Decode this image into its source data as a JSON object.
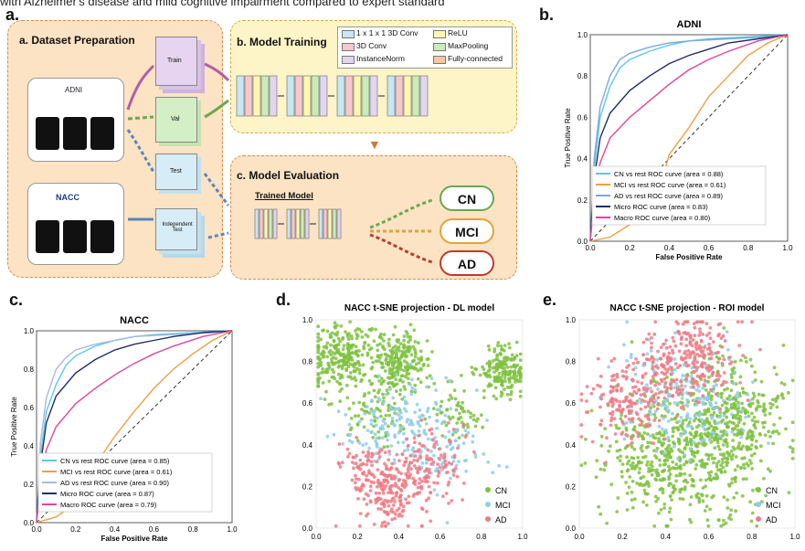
{
  "caption": "with Alzheimer's disease and mild cognitive impairment compared to expert standard",
  "panel_a": {
    "letter": "a.",
    "title": "a. Dataset Preparation",
    "adni_label": "ADNI",
    "nacc_label": "NACC",
    "train": "Train",
    "val": "Val",
    "test": "Test",
    "independent_test": "Independent Test"
  },
  "panel_b_box": {
    "title": "b. Model Training",
    "legend": [
      "1 x 1 x 1 3D Conv",
      "ReLU",
      "3D Conv",
      "MaxPooling",
      "InstanceNorm",
      "Fully-connected"
    ],
    "colors": [
      "#c6e7f3",
      "#fff7b0",
      "#f7c7cf",
      "#c9ecb8",
      "#e3d5f0",
      "#f8c9a0"
    ]
  },
  "panel_c_box": {
    "title": "c. Model Evaluation",
    "trained_model": "Trained Model",
    "outputs": [
      {
        "label": "CN",
        "color": "#6aa84f"
      },
      {
        "label": "MCI",
        "color": "#e0a33b"
      },
      {
        "label": "AD",
        "color": "#c0392b"
      }
    ]
  },
  "roc_adni": {
    "letter": "b.",
    "chart_data": {
      "type": "line",
      "title": "ADNI",
      "xlabel": "False Positive Rate",
      "ylabel": "True Positive Rate",
      "xlim": [
        0,
        1
      ],
      "ylim": [
        0,
        1
      ],
      "xticks": [
        "0.0",
        "0.2",
        "0.4",
        "0.6",
        "0.8",
        "1.0"
      ],
      "yticks": [
        "0.0",
        "0.2",
        "0.4",
        "0.6",
        "0.8",
        "1.0"
      ],
      "legend_position": "bottom-right",
      "series": [
        {
          "name": "CN vs rest ROC curve (area = 0.88)",
          "color": "#5bc8e8",
          "x": [
            0,
            0.02,
            0.05,
            0.1,
            0.15,
            0.2,
            0.3,
            0.4,
            0.5,
            0.6,
            0.8,
            1.0
          ],
          "y": [
            0,
            0.35,
            0.6,
            0.75,
            0.84,
            0.88,
            0.92,
            0.95,
            0.97,
            0.98,
            0.99,
            1.0
          ]
        },
        {
          "name": "MCI vs rest ROC curve (area = 0.61)",
          "color": "#f0a040",
          "x": [
            0,
            0.1,
            0.2,
            0.3,
            0.35,
            0.4,
            0.5,
            0.6,
            0.7,
            0.8,
            0.9,
            1.0
          ],
          "y": [
            0,
            0.02,
            0.08,
            0.15,
            0.25,
            0.42,
            0.55,
            0.7,
            0.8,
            0.9,
            0.96,
            1.0
          ]
        },
        {
          "name": "AD vs rest ROC curve (area = 0.89)",
          "color": "#7fa6e0",
          "x": [
            0,
            0.02,
            0.05,
            0.1,
            0.15,
            0.2,
            0.3,
            0.4,
            0.5,
            0.7,
            0.9,
            1.0
          ],
          "y": [
            0,
            0.4,
            0.65,
            0.8,
            0.88,
            0.91,
            0.94,
            0.96,
            0.97,
            0.98,
            0.99,
            1.0
          ]
        },
        {
          "name": "Micro ROC curve (area = 0.83)",
          "color": "#1f2d6b",
          "x": [
            0,
            0.02,
            0.05,
            0.1,
            0.2,
            0.3,
            0.4,
            0.5,
            0.6,
            0.7,
            0.85,
            1.0
          ],
          "y": [
            0,
            0.3,
            0.5,
            0.62,
            0.73,
            0.8,
            0.86,
            0.9,
            0.93,
            0.96,
            0.98,
            1.0
          ]
        },
        {
          "name": "Macro ROC curve (area = 0.80)",
          "color": "#e0469b",
          "x": [
            0,
            0.02,
            0.05,
            0.1,
            0.2,
            0.3,
            0.4,
            0.5,
            0.6,
            0.7,
            0.85,
            1.0
          ],
          "y": [
            0,
            0.2,
            0.38,
            0.5,
            0.6,
            0.68,
            0.76,
            0.83,
            0.88,
            0.92,
            0.97,
            1.0
          ]
        }
      ]
    }
  },
  "roc_nacc": {
    "letter": "c.",
    "chart_data": {
      "type": "line",
      "title": "NACC",
      "xlabel": "False Positive Rate",
      "ylabel": "True Positive Rate",
      "xlim": [
        0,
        1
      ],
      "ylim": [
        0,
        1
      ],
      "xticks": [
        "0.0",
        "0.2",
        "0.4",
        "0.6",
        "0.8",
        "1.0"
      ],
      "yticks": [
        "0.0",
        "0.2",
        "0.4",
        "0.6",
        "0.8",
        "1.0"
      ],
      "legend_position": "bottom-right",
      "series": [
        {
          "name": "CN vs rest ROC curve (area = 0.85)",
          "color": "#5bc8e8",
          "x": [
            0,
            0.02,
            0.05,
            0.1,
            0.15,
            0.2,
            0.3,
            0.4,
            0.5,
            0.6,
            0.8,
            1.0
          ],
          "y": [
            0,
            0.35,
            0.58,
            0.72,
            0.82,
            0.87,
            0.92,
            0.95,
            0.97,
            0.98,
            0.99,
            1.0
          ]
        },
        {
          "name": "MCI vs rest ROC curve (area = 0.61)",
          "color": "#f0a040",
          "x": [
            0,
            0.1,
            0.2,
            0.25,
            0.3,
            0.4,
            0.5,
            0.6,
            0.7,
            0.8,
            0.9,
            1.0
          ],
          "y": [
            0,
            0.03,
            0.1,
            0.18,
            0.3,
            0.45,
            0.58,
            0.7,
            0.8,
            0.88,
            0.95,
            1.0
          ]
        },
        {
          "name": "AD vs rest ROC curve (area = 0.90)",
          "color": "#a9b8e0",
          "x": [
            0,
            0.02,
            0.05,
            0.1,
            0.15,
            0.2,
            0.3,
            0.4,
            0.5,
            0.7,
            0.9,
            1.0
          ],
          "y": [
            0,
            0.42,
            0.65,
            0.8,
            0.86,
            0.9,
            0.93,
            0.95,
            0.97,
            0.98,
            0.99,
            1.0
          ]
        },
        {
          "name": "Micro ROC curve (area = 0.87)",
          "color": "#1f2d6b",
          "x": [
            0,
            0.02,
            0.05,
            0.1,
            0.2,
            0.3,
            0.4,
            0.5,
            0.6,
            0.7,
            0.85,
            1.0
          ],
          "y": [
            0,
            0.3,
            0.52,
            0.66,
            0.78,
            0.85,
            0.9,
            0.93,
            0.95,
            0.97,
            0.99,
            1.0
          ]
        },
        {
          "name": "Macro ROC curve (area = 0.79)",
          "color": "#e0469b",
          "x": [
            0,
            0.02,
            0.05,
            0.1,
            0.2,
            0.3,
            0.4,
            0.5,
            0.6,
            0.7,
            0.85,
            1.0
          ],
          "y": [
            0,
            0.2,
            0.38,
            0.5,
            0.62,
            0.7,
            0.77,
            0.83,
            0.88,
            0.92,
            0.97,
            1.0
          ]
        }
      ]
    }
  },
  "tsne_dl": {
    "letter": "d.",
    "chart_data": {
      "type": "scatter",
      "title": "NACC t-SNE projection - DL model",
      "xlim": [
        0,
        1
      ],
      "ylim": [
        0,
        1
      ],
      "xticks": [
        "0.0",
        "0.2",
        "0.4",
        "0.6",
        "0.8",
        "1.0"
      ],
      "yticks": [
        "0.0",
        "0.2",
        "0.4",
        "0.6",
        "0.8",
        "1.0"
      ],
      "legend_position": "bottom-right",
      "series": [
        {
          "name": "CN",
          "color": "#7fc241",
          "clusters": [
            [
              0.12,
              0.82,
              0.08,
              260
            ],
            [
              0.42,
              0.8,
              0.07,
              220
            ],
            [
              0.9,
              0.75,
              0.06,
              180
            ],
            [
              0.3,
              0.55,
              0.08,
              80
            ],
            [
              0.7,
              0.55,
              0.06,
              60
            ]
          ]
        },
        {
          "name": "MCI",
          "color": "#8fcde8",
          "clusters": [
            [
              0.45,
              0.5,
              0.12,
              120
            ],
            [
              0.65,
              0.35,
              0.1,
              70
            ],
            [
              0.25,
              0.45,
              0.1,
              40
            ]
          ]
        },
        {
          "name": "AD",
          "color": "#ef7b85",
          "clusters": [
            [
              0.35,
              0.18,
              0.09,
              200
            ],
            [
              0.55,
              0.3,
              0.08,
              120
            ],
            [
              0.2,
              0.3,
              0.06,
              50
            ]
          ]
        }
      ]
    }
  },
  "tsne_roi": {
    "letter": "e.",
    "chart_data": {
      "type": "scatter",
      "title": "NACC t-SNE projection - ROI model",
      "xlim": [
        0,
        1
      ],
      "ylim": [
        0,
        1
      ],
      "xticks": [
        "0.0",
        "0.2",
        "0.4",
        "0.6",
        "0.8",
        "1.0"
      ],
      "yticks": [
        "0.0",
        "0.2",
        "0.4",
        "0.6",
        "0.8",
        "1.0"
      ],
      "legend_position": "bottom-right",
      "series": [
        {
          "name": "CN",
          "color": "#7fc241",
          "clusters": [
            [
              0.55,
              0.4,
              0.18,
              520
            ],
            [
              0.75,
              0.55,
              0.12,
              220
            ],
            [
              0.35,
              0.3,
              0.12,
              160
            ]
          ]
        },
        {
          "name": "MCI",
          "color": "#8fcde8",
          "clusters": [
            [
              0.4,
              0.65,
              0.14,
              120
            ],
            [
              0.6,
              0.6,
              0.12,
              90
            ]
          ]
        },
        {
          "name": "AD",
          "color": "#ef7b85",
          "clusters": [
            [
              0.55,
              0.85,
              0.1,
              180
            ],
            [
              0.2,
              0.6,
              0.1,
              160
            ],
            [
              0.4,
              0.75,
              0.08,
              100
            ]
          ]
        }
      ]
    }
  }
}
